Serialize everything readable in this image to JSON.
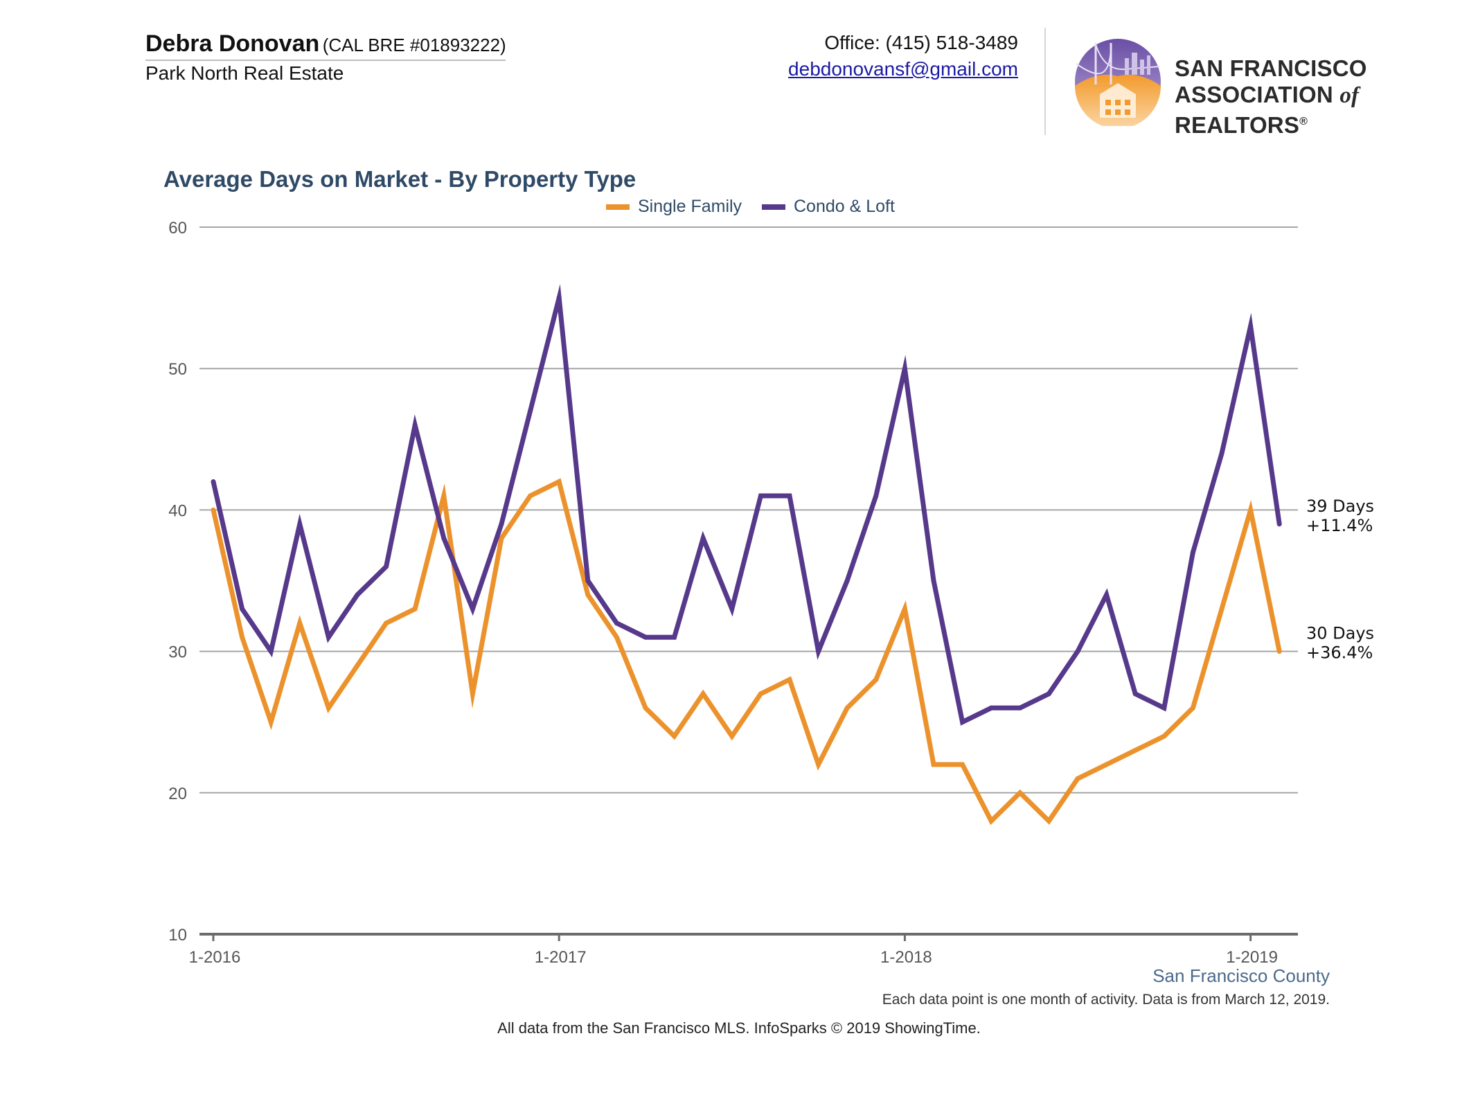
{
  "header": {
    "agent_name": "Debra Donovan",
    "agent_license": "(CAL BRE #01893222)",
    "agent_company": "Park North Real Estate",
    "office_phone": "Office: (415) 518-3489",
    "email": "debdonovansf@gmail.com",
    "org_line1": "SAN FRANCISCO",
    "org_line2_a": "ASSOCIATION ",
    "org_line2_of": "of",
    "org_line2_b": " REALTORS",
    "org_mark": "®"
  },
  "chart_data": {
    "type": "line",
    "title": "Average Days on Market - By Property Type",
    "xlabel": "",
    "ylabel": "",
    "ylim": [
      10,
      60
    ],
    "yticks": [
      10,
      20,
      30,
      40,
      50,
      60
    ],
    "grid": true,
    "legend_position": "top-center",
    "x_tick_labels": [
      "1-2016",
      "1-2017",
      "1-2018",
      "1-2019"
    ],
    "x_tick_indices": [
      0,
      12,
      24,
      36
    ],
    "x": [
      "1-2016",
      "2-2016",
      "3-2016",
      "4-2016",
      "5-2016",
      "6-2016",
      "7-2016",
      "8-2016",
      "9-2016",
      "10-2016",
      "11-2016",
      "12-2016",
      "1-2017",
      "2-2017",
      "3-2017",
      "4-2017",
      "5-2017",
      "6-2017",
      "7-2017",
      "8-2017",
      "9-2017",
      "10-2017",
      "11-2017",
      "12-2017",
      "1-2018",
      "2-2018",
      "3-2018",
      "4-2018",
      "5-2018",
      "6-2018",
      "7-2018",
      "8-2018",
      "9-2018",
      "10-2018",
      "11-2018",
      "12-2018",
      "1-2019",
      "2-2019"
    ],
    "series": [
      {
        "name": "Single Family",
        "color": "#ec922c",
        "values": [
          40,
          31,
          25,
          32,
          26,
          29,
          32,
          33,
          41,
          27,
          38,
          41,
          42,
          34,
          31,
          26,
          24,
          27,
          24,
          27,
          28,
          22,
          26,
          28,
          33,
          22,
          22,
          18,
          20,
          18,
          21,
          22,
          23,
          24,
          26,
          33,
          40,
          30
        ],
        "end_label_days": "30 Days",
        "end_label_pct": "+36.4%"
      },
      {
        "name": "Condo & Loft",
        "color": "#57398b",
        "values": [
          42,
          33,
          30,
          39,
          31,
          34,
          36,
          46,
          38,
          33,
          39,
          47,
          55,
          35,
          32,
          31,
          31,
          38,
          33,
          41,
          41,
          30,
          35,
          41,
          50,
          35,
          25,
          26,
          26,
          27,
          30,
          34,
          27,
          26,
          37,
          44,
          53,
          39
        ],
        "end_label_days": "39 Days",
        "end_label_pct": "+11.4%"
      }
    ],
    "gridline_color": "#a6a6a6",
    "axis_color": "#6b6b6b"
  },
  "footer": {
    "county": "San Francisco County",
    "note": "Each data point is one month of activity. Data is from March 12, 2019.",
    "source": "All data from the San Francisco MLS. InfoSparks © 2019 ShowingTime."
  }
}
